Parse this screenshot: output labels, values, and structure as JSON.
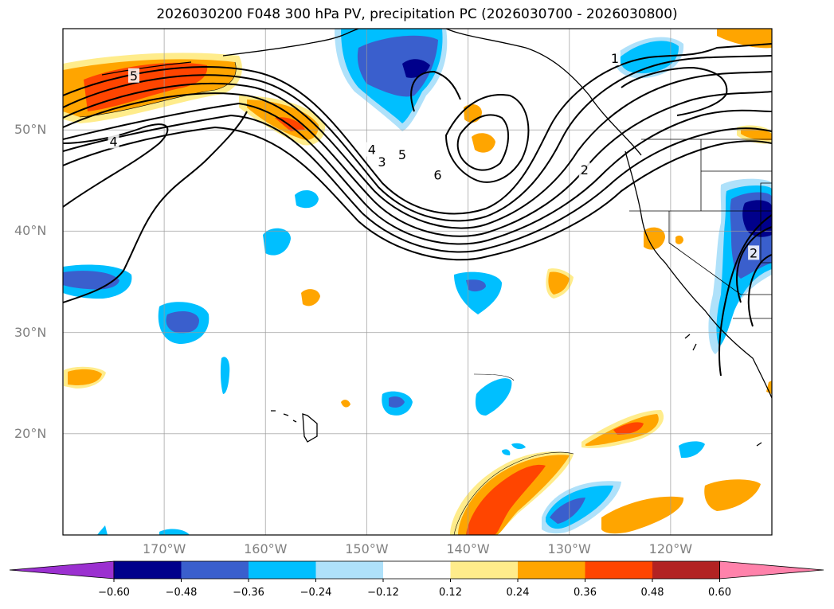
{
  "title": "2026030200 F048 300 hPa PV, precipitation PC (2026030700 - 2026030800)",
  "map": {
    "extent": {
      "lon_min": -180,
      "lon_max": -110,
      "lat_min": 10,
      "lat_max": 60
    },
    "lat_labels": [
      {
        "lat": 50,
        "text": "50°N"
      },
      {
        "lat": 40,
        "text": "40°N"
      },
      {
        "lat": 30,
        "text": "30°N"
      },
      {
        "lat": 20,
        "text": "20°N"
      }
    ],
    "lon_labels": [
      {
        "lon": -170,
        "text": "170°W"
      },
      {
        "lon": -160,
        "text": "160°W"
      },
      {
        "lon": -150,
        "text": "150°W"
      },
      {
        "lon": -140,
        "text": "140°W"
      },
      {
        "lon": -130,
        "text": "130°W"
      },
      {
        "lon": -120,
        "text": "120°W"
      }
    ],
    "pv_contour_labels": [
      {
        "text": "5",
        "lon": -173.0,
        "lat": 55.3
      },
      {
        "text": "4",
        "lon": -175.0,
        "lat": 48.8
      },
      {
        "text": "4",
        "lon": -149.5,
        "lat": 48.0
      },
      {
        "text": "3",
        "lon": -148.5,
        "lat": 46.8
      },
      {
        "text": "5",
        "lon": -146.5,
        "lat": 47.5
      },
      {
        "text": "6",
        "lon": -143.0,
        "lat": 45.5
      },
      {
        "text": "2",
        "lon": -128.5,
        "lat": 46.0
      },
      {
        "text": "1",
        "lon": -125.5,
        "lat": 57.0
      },
      {
        "text": "2",
        "lon": -111.8,
        "lat": 37.8
      }
    ]
  },
  "colorbar": {
    "colors": [
      "#9b30d0",
      "#00008b",
      "#3a5fcd",
      "#00bfff",
      "#afe1fa",
      "#ffffff",
      "#ffec8b",
      "#ffa500",
      "#ff4500",
      "#b22222",
      "#ff82ab"
    ],
    "tick_labels": [
      "−0.60",
      "−0.48",
      "−0.36",
      "−0.24",
      "−0.12",
      "0.12",
      "0.24",
      "0.36",
      "0.48",
      "0.60"
    ],
    "tick_values": [
      -0.6,
      -0.48,
      -0.36,
      -0.24,
      -0.12,
      0.12,
      0.24,
      0.36,
      0.48,
      0.6
    ]
  }
}
